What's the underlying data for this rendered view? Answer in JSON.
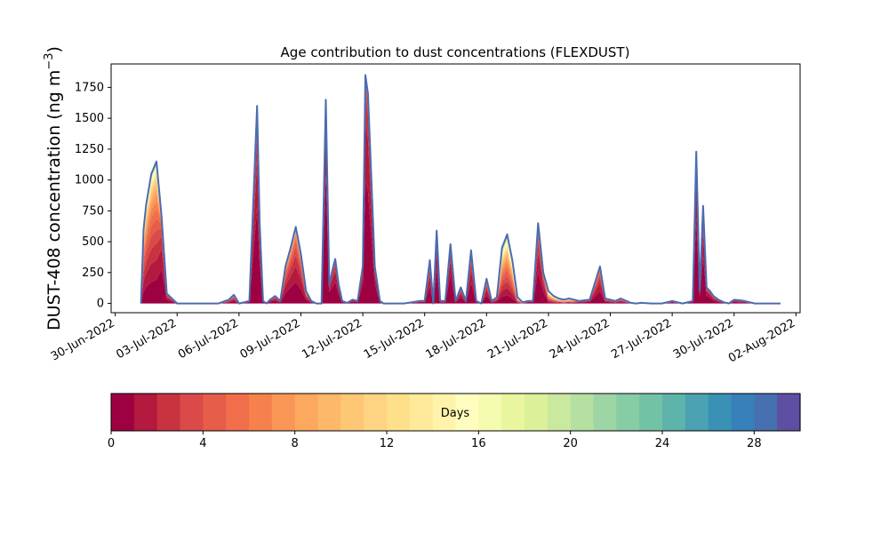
{
  "chart_data": {
    "type": "area",
    "title": "Age contribution to dust concentrations (FLEXDUST)",
    "ylabel": "DUST-408 concentration (ng m",
    "ylabel_unit_sup": "−3",
    "ylabel_close": ")",
    "xlabel": "",
    "ylim": [
      -75,
      1940
    ],
    "xlim": [
      "2022-06-30",
      "2022-08-02"
    ],
    "x_ticks": [
      "30-Jun-2022",
      "03-Jul-2022",
      "06-Jul-2022",
      "09-Jul-2022",
      "12-Jul-2022",
      "15-Jul-2022",
      "18-Jul-2022",
      "21-Jul-2022",
      "24-Jul-2022",
      "27-Jul-2022",
      "30-Jul-2022",
      "02-Aug-2022"
    ],
    "y_ticks": [
      0,
      250,
      500,
      750,
      1000,
      1250,
      1500,
      1750
    ],
    "x": [
      "2022-07-01T06",
      "2022-07-01T09",
      "2022-07-01T12",
      "2022-07-01T18",
      "2022-07-02T00",
      "2022-07-02T06",
      "2022-07-02T12",
      "2022-07-03T00",
      "2022-07-04T00",
      "2022-07-05T00",
      "2022-07-05T12",
      "2022-07-05T18",
      "2022-07-06T00",
      "2022-07-06T12",
      "2022-07-06T21",
      "2022-07-07T00",
      "2022-07-07T04",
      "2022-07-07T08",
      "2022-07-07T12",
      "2022-07-07T18",
      "2022-07-08T00",
      "2022-07-08T06",
      "2022-07-08T12",
      "2022-07-08T18",
      "2022-07-09T00",
      "2022-07-09T06",
      "2022-07-09T12",
      "2022-07-09T18",
      "2022-07-10T00",
      "2022-07-10T05",
      "2022-07-10T09",
      "2022-07-10T13",
      "2022-07-10T16",
      "2022-07-10T20",
      "2022-07-11T00",
      "2022-07-11T06",
      "2022-07-11T12",
      "2022-07-11T18",
      "2022-07-12T00",
      "2022-07-12T03",
      "2022-07-12T06",
      "2022-07-12T10",
      "2022-07-12T14",
      "2022-07-12T20",
      "2022-07-13T00",
      "2022-07-13T12",
      "2022-07-14T00",
      "2022-07-14T18",
      "2022-07-15T00",
      "2022-07-15T06",
      "2022-07-15T10",
      "2022-07-15T14",
      "2022-07-15T18",
      "2022-07-16T00",
      "2022-07-16T06",
      "2022-07-16T12",
      "2022-07-16T18",
      "2022-07-17T00",
      "2022-07-17T06",
      "2022-07-17T12",
      "2022-07-17T18",
      "2022-07-18T00",
      "2022-07-18T06",
      "2022-07-18T12",
      "2022-07-18T18",
      "2022-07-19T00",
      "2022-07-19T06",
      "2022-07-19T12",
      "2022-07-19T18",
      "2022-07-20T00",
      "2022-07-20T06",
      "2022-07-20T12",
      "2022-07-20T18",
      "2022-07-21T00",
      "2022-07-21T06",
      "2022-07-21T12",
      "2022-07-21T18",
      "2022-07-22T00",
      "2022-07-22T12",
      "2022-07-23T00",
      "2022-07-23T12",
      "2022-07-23T18",
      "2022-07-24T00",
      "2022-07-24T06",
      "2022-07-24T12",
      "2022-07-25T00",
      "2022-07-25T06",
      "2022-07-25T12",
      "2022-07-26T00",
      "2022-07-26T12",
      "2022-07-27T00",
      "2022-07-27T12",
      "2022-07-28T00",
      "2022-07-28T04",
      "2022-07-28T08",
      "2022-07-28T12",
      "2022-07-28T16",
      "2022-07-28T20",
      "2022-07-29T00",
      "2022-07-29T06",
      "2022-07-29T12",
      "2022-07-29T18",
      "2022-07-30T00",
      "2022-07-30T12",
      "2022-07-31T00",
      "2022-07-31T12",
      "2022-08-01T00",
      "2022-08-01T06"
    ],
    "total_values": [
      0,
      600,
      800,
      1050,
      1150,
      700,
      80,
      0,
      0,
      0,
      30,
      70,
      0,
      20,
      1600,
      650,
      20,
      0,
      30,
      60,
      20,
      300,
      450,
      620,
      400,
      100,
      20,
      0,
      0,
      1650,
      150,
      280,
      360,
      150,
      20,
      5,
      30,
      20,
      300,
      1850,
      1700,
      1000,
      300,
      20,
      0,
      0,
      0,
      20,
      20,
      350,
      0,
      590,
      20,
      20,
      480,
      20,
      130,
      20,
      430,
      20,
      0,
      200,
      20,
      50,
      450,
      560,
      350,
      50,
      10,
      20,
      20,
      650,
      250,
      100,
      60,
      40,
      30,
      40,
      20,
      30,
      300,
      40,
      30,
      20,
      40,
      5,
      0,
      5,
      0,
      0,
      20,
      0,
      20,
      1230,
      100,
      790,
      130,
      100,
      60,
      30,
      10,
      0,
      30,
      20,
      0,
      0,
      0,
      0
    ],
    "peak_mean_age_days": [
      {
        "date": "2022-07-01T12",
        "age": 5.5
      },
      {
        "date": "2022-07-05T18",
        "age": 3
      },
      {
        "date": "2022-07-06T21",
        "age": 1.5
      },
      {
        "date": "2022-07-08T18",
        "age": 3
      },
      {
        "date": "2022-07-10T05",
        "age": 1
      },
      {
        "date": "2022-07-10T16",
        "age": 1.5
      },
      {
        "date": "2022-07-12T03",
        "age": 1.3
      },
      {
        "date": "2022-07-15T06",
        "age": 2
      },
      {
        "date": "2022-07-15T14",
        "age": 1.5
      },
      {
        "date": "2022-07-16T06",
        "age": 1.5
      },
      {
        "date": "2022-07-16T18",
        "age": 2
      },
      {
        "date": "2022-07-17T06",
        "age": 2
      },
      {
        "date": "2022-07-18T00",
        "age": 2.5
      },
      {
        "date": "2022-07-19T06",
        "age": 8
      },
      {
        "date": "2022-07-21T12",
        "age": 9
      },
      {
        "date": "2022-07-23T18",
        "age": 2.5
      },
      {
        "date": "2022-07-24T12",
        "age": 3
      },
      {
        "date": "2022-07-28T04",
        "age": 1.2
      },
      {
        "date": "2022-07-28T16",
        "age": 1.5
      },
      {
        "date": "2022-07-29T06",
        "age": 2
      },
      {
        "date": "2022-07-31T12",
        "age": 6
      }
    ],
    "colorbar": {
      "label": "Days",
      "range": [
        0,
        30
      ],
      "ticks": [
        0,
        4,
        8,
        12,
        16,
        20,
        24,
        28
      ],
      "colors": [
        "#9e0142",
        "#b4193f",
        "#c9333f",
        "#da4a49",
        "#e65d4a",
        "#f06e4a",
        "#f7814c",
        "#fa9656",
        "#fca85e",
        "#fdb869",
        "#fdc776",
        "#fed483",
        "#fee08b",
        "#feea9a",
        "#fff3ac",
        "#fffebe",
        "#f5fbaf",
        "#eaf69e",
        "#dcf09a",
        "#c9e99e",
        "#b5e0a2",
        "#9dd5a4",
        "#86cca5",
        "#72c2a5",
        "#5eb3aa",
        "#4aa2b2",
        "#3991b6",
        "#3780b9",
        "#4670b0",
        "#5e4fa2"
      ]
    },
    "outline_color": "#4b6cb0",
    "grid": false,
    "legend": "colorbar below plot"
  }
}
